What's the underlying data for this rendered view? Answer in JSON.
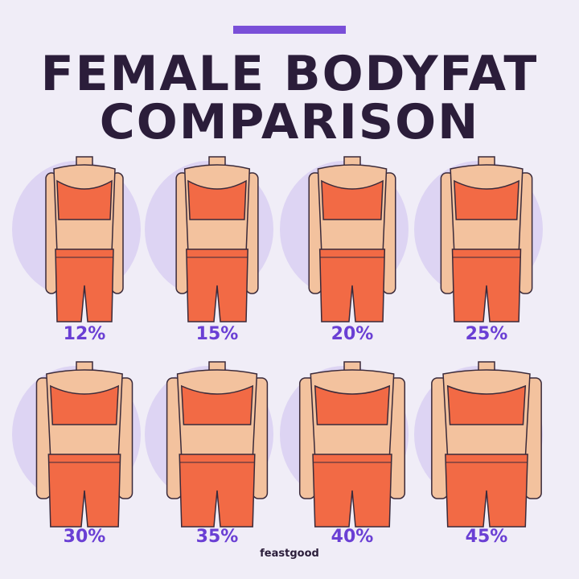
{
  "header": {
    "title_lines": [
      "FEMALE BODYFAT",
      "COMPARISON"
    ]
  },
  "figures": [
    {
      "label": "12%"
    },
    {
      "label": "15%"
    },
    {
      "label": "20%"
    },
    {
      "label": "25%"
    },
    {
      "label": "30%"
    },
    {
      "label": "35%"
    },
    {
      "label": "40%"
    },
    {
      "label": "45%"
    }
  ],
  "brand": "feastgood"
}
